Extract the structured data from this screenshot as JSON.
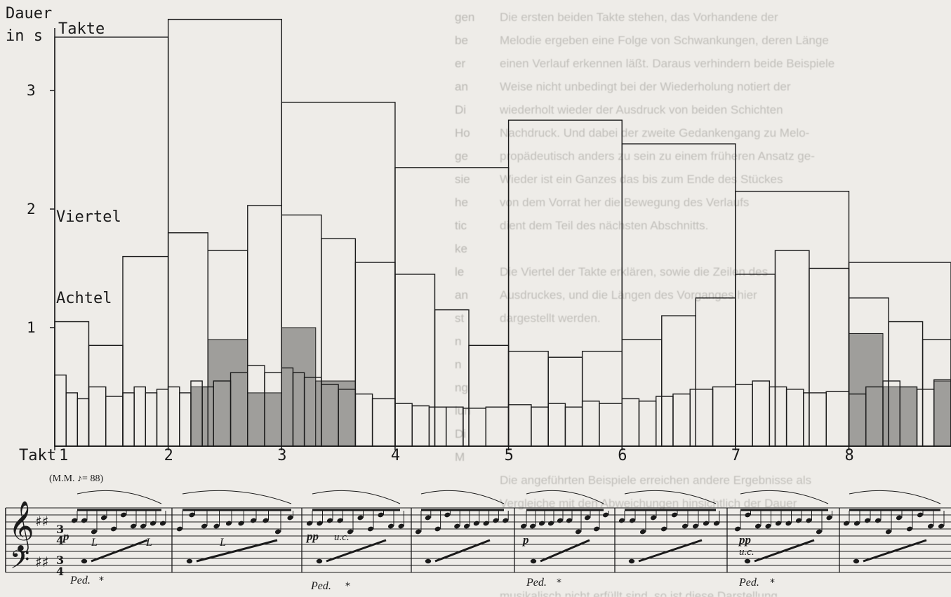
{
  "chart_data": {
    "type": "bar",
    "title": "",
    "ylabel_line1": "Dauer",
    "ylabel_line2": "in s",
    "xlabel": "Takt",
    "ylim": [
      0,
      3.7
    ],
    "yticks": [
      "1",
      "2",
      "3"
    ],
    "xlim": [
      1,
      8.9
    ],
    "measures": [
      "1",
      "2",
      "3",
      "4",
      "5",
      "6",
      "7",
      "8"
    ],
    "annotations": [
      "Takte",
      "Viertel",
      "Achtel"
    ],
    "grid": false,
    "tempo_marking": "(M.M. ♪= 88)",
    "takte": [
      {
        "start": 1.0,
        "end": 2.0,
        "value": 3.45
      },
      {
        "start": 2.0,
        "end": 3.0,
        "value": 3.6
      },
      {
        "start": 3.0,
        "end": 4.0,
        "value": 2.9
      },
      {
        "start": 4.0,
        "end": 5.0,
        "value": 2.35
      },
      {
        "start": 5.0,
        "end": 6.0,
        "value": 2.75
      },
      {
        "start": 6.0,
        "end": 7.0,
        "value": 2.55
      },
      {
        "start": 7.0,
        "end": 8.0,
        "value": 2.15
      },
      {
        "start": 8.0,
        "end": 8.9,
        "value": 1.55
      }
    ],
    "viertel": [
      {
        "start": 1.0,
        "end": 1.3,
        "value": 1.05
      },
      {
        "start": 1.3,
        "end": 1.6,
        "value": 0.85
      },
      {
        "start": 1.6,
        "end": 2.0,
        "value": 1.6
      },
      {
        "start": 2.0,
        "end": 2.35,
        "value": 1.8
      },
      {
        "start": 2.35,
        "end": 2.7,
        "value": 1.65
      },
      {
        "start": 2.7,
        "end": 3.0,
        "value": 2.03
      },
      {
        "start": 3.0,
        "end": 3.35,
        "value": 1.95
      },
      {
        "start": 3.35,
        "end": 3.65,
        "value": 1.75
      },
      {
        "start": 3.65,
        "end": 4.0,
        "value": 1.55
      },
      {
        "start": 4.0,
        "end": 4.35,
        "value": 1.45
      },
      {
        "start": 4.35,
        "end": 4.65,
        "value": 1.15
      },
      {
        "start": 4.65,
        "end": 5.0,
        "value": 0.85
      },
      {
        "start": 5.0,
        "end": 5.35,
        "value": 0.8
      },
      {
        "start": 5.35,
        "end": 5.65,
        "value": 0.75
      },
      {
        "start": 5.65,
        "end": 6.0,
        "value": 0.8
      },
      {
        "start": 6.0,
        "end": 6.35,
        "value": 0.9
      },
      {
        "start": 6.35,
        "end": 6.65,
        "value": 1.1
      },
      {
        "start": 6.65,
        "end": 7.0,
        "value": 1.25
      },
      {
        "start": 7.0,
        "end": 7.35,
        "value": 1.45
      },
      {
        "start": 7.35,
        "end": 7.65,
        "value": 1.65
      },
      {
        "start": 7.65,
        "end": 8.0,
        "value": 1.5
      },
      {
        "start": 8.0,
        "end": 8.35,
        "value": 1.25
      },
      {
        "start": 8.35,
        "end": 8.65,
        "value": 1.05
      },
      {
        "start": 8.65,
        "end": 8.9,
        "value": 0.9
      }
    ],
    "achtel": [
      {
        "start": 1.0,
        "end": 1.1,
        "value": 0.6
      },
      {
        "start": 1.1,
        "end": 1.2,
        "value": 0.45
      },
      {
        "start": 1.2,
        "end": 1.3,
        "value": 0.4
      },
      {
        "start": 1.3,
        "end": 1.45,
        "value": 0.5
      },
      {
        "start": 1.45,
        "end": 1.6,
        "value": 0.42
      },
      {
        "start": 1.6,
        "end": 1.7,
        "value": 0.45
      },
      {
        "start": 1.7,
        "end": 1.8,
        "value": 0.5
      },
      {
        "start": 1.8,
        "end": 1.9,
        "value": 0.45
      },
      {
        "start": 1.9,
        "end": 2.0,
        "value": 0.48
      },
      {
        "start": 2.0,
        "end": 2.1,
        "value": 0.5
      },
      {
        "start": 2.1,
        "end": 2.2,
        "value": 0.45
      },
      {
        "start": 2.2,
        "end": 2.3,
        "value": 0.55
      },
      {
        "start": 2.3,
        "end": 2.4,
        "value": 0.5
      },
      {
        "start": 2.4,
        "end": 2.55,
        "value": 0.55
      },
      {
        "start": 2.55,
        "end": 2.7,
        "value": 0.62
      },
      {
        "start": 2.7,
        "end": 2.85,
        "value": 0.68
      },
      {
        "start": 2.85,
        "end": 3.0,
        "value": 0.62
      },
      {
        "start": 3.0,
        "end": 3.1,
        "value": 0.66
      },
      {
        "start": 3.1,
        "end": 3.2,
        "value": 0.62
      },
      {
        "start": 3.2,
        "end": 3.35,
        "value": 0.58
      },
      {
        "start": 3.35,
        "end": 3.5,
        "value": 0.52
      },
      {
        "start": 3.5,
        "end": 3.65,
        "value": 0.48
      },
      {
        "start": 3.65,
        "end": 3.8,
        "value": 0.44
      },
      {
        "start": 3.8,
        "end": 4.0,
        "value": 0.4
      },
      {
        "start": 4.0,
        "end": 4.15,
        "value": 0.36
      },
      {
        "start": 4.15,
        "end": 4.3,
        "value": 0.34
      },
      {
        "start": 4.3,
        "end": 4.45,
        "value": 0.33
      },
      {
        "start": 4.45,
        "end": 4.6,
        "value": 0.33
      },
      {
        "start": 4.6,
        "end": 4.8,
        "value": 0.32
      },
      {
        "start": 4.8,
        "end": 5.0,
        "value": 0.33
      },
      {
        "start": 5.0,
        "end": 5.2,
        "value": 0.35
      },
      {
        "start": 5.2,
        "end": 5.35,
        "value": 0.33
      },
      {
        "start": 5.35,
        "end": 5.5,
        "value": 0.36
      },
      {
        "start": 5.5,
        "end": 5.65,
        "value": 0.33
      },
      {
        "start": 5.65,
        "end": 5.8,
        "value": 0.38
      },
      {
        "start": 5.8,
        "end": 6.0,
        "value": 0.36
      },
      {
        "start": 6.0,
        "end": 6.15,
        "value": 0.4
      },
      {
        "start": 6.15,
        "end": 6.3,
        "value": 0.38
      },
      {
        "start": 6.3,
        "end": 6.45,
        "value": 0.42
      },
      {
        "start": 6.45,
        "end": 6.6,
        "value": 0.44
      },
      {
        "start": 6.6,
        "end": 6.8,
        "value": 0.48
      },
      {
        "start": 6.8,
        "end": 7.0,
        "value": 0.5
      },
      {
        "start": 7.0,
        "end": 7.15,
        "value": 0.52
      },
      {
        "start": 7.15,
        "end": 7.3,
        "value": 0.55
      },
      {
        "start": 7.3,
        "end": 7.45,
        "value": 0.5
      },
      {
        "start": 7.45,
        "end": 7.6,
        "value": 0.48
      },
      {
        "start": 7.6,
        "end": 7.8,
        "value": 0.45
      },
      {
        "start": 7.8,
        "end": 8.0,
        "value": 0.46
      },
      {
        "start": 8.0,
        "end": 8.15,
        "value": 0.44
      },
      {
        "start": 8.15,
        "end": 8.3,
        "value": 0.5
      },
      {
        "start": 8.3,
        "end": 8.45,
        "value": 0.55
      },
      {
        "start": 8.45,
        "end": 8.6,
        "value": 0.5
      },
      {
        "start": 8.6,
        "end": 8.75,
        "value": 0.48
      },
      {
        "start": 8.75,
        "end": 8.9,
        "value": 0.56
      }
    ],
    "shaded": [
      {
        "start": 2.2,
        "end": 2.35,
        "value": 0.5
      },
      {
        "start": 2.35,
        "end": 2.7,
        "value": 0.9
      },
      {
        "start": 2.7,
        "end": 3.0,
        "value": 0.45
      },
      {
        "start": 3.0,
        "end": 3.3,
        "value": 1.0
      },
      {
        "start": 3.3,
        "end": 3.65,
        "value": 0.55
      },
      {
        "start": 8.0,
        "end": 8.3,
        "value": 0.95
      },
      {
        "start": 8.3,
        "end": 8.6,
        "value": 0.5
      },
      {
        "start": 8.75,
        "end": 8.9,
        "value": 0.55
      }
    ],
    "colors": {
      "outline": "#1a1a1a",
      "shaded": "#9f9e9b",
      "background": "#eeece8"
    }
  },
  "score": {
    "dynamics": [
      "p",
      "pp",
      "p",
      "pp"
    ],
    "markings": [
      "L",
      "L",
      "L",
      "u.c.",
      "u.c."
    ],
    "pedal": [
      "Ped.",
      "*"
    ]
  },
  "bleed": {
    "left_lines": [
      "gen",
      "be",
      "er",
      "an",
      "Di",
      "Ho",
      "ge",
      "sie",
      "he",
      "tic",
      "ke",
      "le",
      "an",
      "st",
      "n",
      "n",
      "ng",
      "lun",
      "Di",
      "M"
    ],
    "right_lines": [
      "Die ersten beiden Takte stehen, das Vorhandene der",
      "Melodie ergeben eine Folge von Schwankungen, deren Länge",
      "einen Verlauf erkennen läßt. Daraus verhindern beide Beispiele",
      "Weise nicht unbedingt bei der Wiederholung notiert der",
      "wiederholt wieder der Ausdruck von beiden Schichten",
      "Nachdruck. Und dabei der zweite Gedankengang zu Melo-",
      "propädeutisch anders zu sein zu einem früheren Ansatz ge-",
      "Wieder ist ein Ganzes das bis zum Ende des Stückes",
      "von dem Vorrat her die Bewegung des Verlaufs",
      "dient dem Teil des nächsten Abschnitts.",
      "",
      "Die Viertel der Takte erklären, sowie die Zeilen des",
      "Ausdruckes, und die Längen des Vorganges hier",
      "dargestellt werden.",
      "",
      "",
      "",
      "",
      "",
      "",
      "Die angeführten Beispiele erreichen andere Ergebnisse als",
      "Vergleiche mit den Abweichungen hinsichtlich der Dauer",
      "",
      "",
      "",
      "musikalisch nicht erfüllt sind, so ist diese Darstellung"
    ]
  }
}
